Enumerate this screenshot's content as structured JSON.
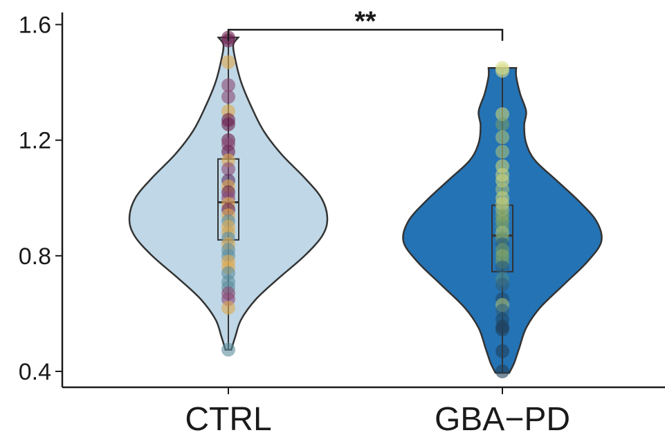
{
  "chart_data": {
    "type": "violin",
    "title": "",
    "xlabel": "",
    "ylabel": "",
    "ylim": [
      0.345,
      1.685
    ],
    "yticks": [
      "0.4",
      "0.8",
      "1.2",
      "1.6"
    ],
    "categories": [
      "CTRL",
      "GBA−PD"
    ],
    "groups": [
      {
        "name": "CTRL",
        "color": "#bfd7e6",
        "box": {
          "q1": 0.855,
          "median": 0.985,
          "q3": 1.135,
          "whisker_low": 0.475,
          "whisker_high": 1.555
        },
        "density": [
          [
            0.475,
            0.03
          ],
          [
            0.52,
            0.07
          ],
          [
            0.58,
            0.13
          ],
          [
            0.65,
            0.28
          ],
          [
            0.72,
            0.5
          ],
          [
            0.8,
            0.77
          ],
          [
            0.87,
            0.95
          ],
          [
            0.93,
            1.0
          ],
          [
            1.0,
            0.94
          ],
          [
            1.07,
            0.77
          ],
          [
            1.15,
            0.54
          ],
          [
            1.23,
            0.36
          ],
          [
            1.31,
            0.24
          ],
          [
            1.4,
            0.13
          ],
          [
            1.48,
            0.07
          ],
          [
            1.53,
            0.05
          ],
          [
            1.555,
            0.1
          ]
        ],
        "points": [
          {
            "y": 1.555,
            "c": "#6a1f4c"
          },
          {
            "y": 1.545,
            "c": "#6a1f4c"
          },
          {
            "y": 1.47,
            "c": "#e0a94f"
          },
          {
            "y": 1.39,
            "c": "#8a4a74"
          },
          {
            "y": 1.35,
            "c": "#8a4a74"
          },
          {
            "y": 1.3,
            "c": "#e0a94f"
          },
          {
            "y": 1.27,
            "c": "#6a1f4c"
          },
          {
            "y": 1.255,
            "c": "#6a1f4c"
          },
          {
            "y": 1.2,
            "c": "#6a1f4c"
          },
          {
            "y": 1.185,
            "c": "#8a4a74"
          },
          {
            "y": 1.16,
            "c": "#6a1f4c"
          },
          {
            "y": 1.13,
            "c": "#e0a94f"
          },
          {
            "y": 1.1,
            "c": "#8a4a74"
          },
          {
            "y": 1.06,
            "c": "#5b2b5e"
          },
          {
            "y": 1.04,
            "c": "#e0a94f"
          },
          {
            "y": 1.02,
            "c": "#6a1f4c"
          },
          {
            "y": 1.0,
            "c": "#8a4a74"
          },
          {
            "y": 0.98,
            "c": "#e0a94f"
          },
          {
            "y": 0.96,
            "c": "#6a1f4c"
          },
          {
            "y": 0.94,
            "c": "#e0a94f"
          },
          {
            "y": 0.92,
            "c": "#5e8d9c"
          },
          {
            "y": 0.9,
            "c": "#e0a94f"
          },
          {
            "y": 0.88,
            "c": "#c9a55a"
          },
          {
            "y": 0.86,
            "c": "#5e8d9c"
          },
          {
            "y": 0.84,
            "c": "#e0a94f"
          },
          {
            "y": 0.82,
            "c": "#5e8d9c"
          },
          {
            "y": 0.8,
            "c": "#5e8d9c"
          },
          {
            "y": 0.78,
            "c": "#e0a94f"
          },
          {
            "y": 0.76,
            "c": "#e0a94f"
          },
          {
            "y": 0.74,
            "c": "#5e8d9c"
          },
          {
            "y": 0.71,
            "c": "#5e8d9c"
          },
          {
            "y": 0.69,
            "c": "#5e8d9c"
          },
          {
            "y": 0.67,
            "c": "#8a4a74"
          },
          {
            "y": 0.65,
            "c": "#8a4a74"
          },
          {
            "y": 0.62,
            "c": "#e0a94f"
          },
          {
            "y": 0.475,
            "c": "#5e8d9c"
          }
        ]
      },
      {
        "name": "GBA−PD",
        "color": "#2473b5",
        "box": {
          "q1": 0.745,
          "median": 0.87,
          "q3": 0.975,
          "whisker_low": 0.395,
          "whisker_high": 1.45
        },
        "density": [
          [
            0.395,
            0.07
          ],
          [
            0.43,
            0.12
          ],
          [
            0.48,
            0.17
          ],
          [
            0.55,
            0.24
          ],
          [
            0.62,
            0.38
          ],
          [
            0.7,
            0.62
          ],
          [
            0.78,
            0.86
          ],
          [
            0.85,
            1.0
          ],
          [
            0.92,
            0.95
          ],
          [
            0.99,
            0.77
          ],
          [
            1.06,
            0.55
          ],
          [
            1.13,
            0.33
          ],
          [
            1.19,
            0.24
          ],
          [
            1.25,
            0.22
          ],
          [
            1.3,
            0.24
          ],
          [
            1.36,
            0.18
          ],
          [
            1.42,
            0.14
          ],
          [
            1.45,
            0.14
          ]
        ],
        "points": [
          {
            "y": 1.45,
            "c": "#d9dd8a"
          },
          {
            "y": 1.44,
            "c": "#d9dd8a"
          },
          {
            "y": 1.29,
            "c": "#c9d37a"
          },
          {
            "y": 1.255,
            "c": "#6f9a6a"
          },
          {
            "y": 1.21,
            "c": "#a8bf7a"
          },
          {
            "y": 1.16,
            "c": "#a8bf7a"
          },
          {
            "y": 1.11,
            "c": "#c9d37a"
          },
          {
            "y": 1.08,
            "c": "#c9d37a"
          },
          {
            "y": 1.06,
            "c": "#c9d37a"
          },
          {
            "y": 1.03,
            "c": "#a8bf7a"
          },
          {
            "y": 1.0,
            "c": "#c9d37a"
          },
          {
            "y": 0.98,
            "c": "#c9d37a"
          },
          {
            "y": 0.96,
            "c": "#a8bf7a"
          },
          {
            "y": 0.94,
            "c": "#8aa860"
          },
          {
            "y": 0.92,
            "c": "#8aa860"
          },
          {
            "y": 0.9,
            "c": "#6f9a6a"
          },
          {
            "y": 0.88,
            "c": "#a8bf7a"
          },
          {
            "y": 0.86,
            "c": "#6f9a6a"
          },
          {
            "y": 0.84,
            "c": "#2f5f7a"
          },
          {
            "y": 0.82,
            "c": "#6f9a6a"
          },
          {
            "y": 0.8,
            "c": "#8aa860"
          },
          {
            "y": 0.78,
            "c": "#6f9a6a"
          },
          {
            "y": 0.76,
            "c": "#2f5f7a"
          },
          {
            "y": 0.72,
            "c": "#4f8a8a"
          },
          {
            "y": 0.7,
            "c": "#2f5f7a"
          },
          {
            "y": 0.65,
            "c": "#1f4a6a"
          },
          {
            "y": 0.63,
            "c": "#a8bf7a"
          },
          {
            "y": 0.61,
            "c": "#2f5f7a"
          },
          {
            "y": 0.58,
            "c": "#1f4a6a"
          },
          {
            "y": 0.555,
            "c": "#1f3f5a"
          },
          {
            "y": 0.545,
            "c": "#1f3f5a"
          },
          {
            "y": 0.47,
            "c": "#1f3f5a"
          },
          {
            "y": 0.4,
            "c": "#1f3f5a"
          }
        ]
      }
    ],
    "significance": {
      "label": "**",
      "between": [
        "CTRL",
        "GBA−PD"
      ]
    },
    "grid": false,
    "legend": "none"
  }
}
